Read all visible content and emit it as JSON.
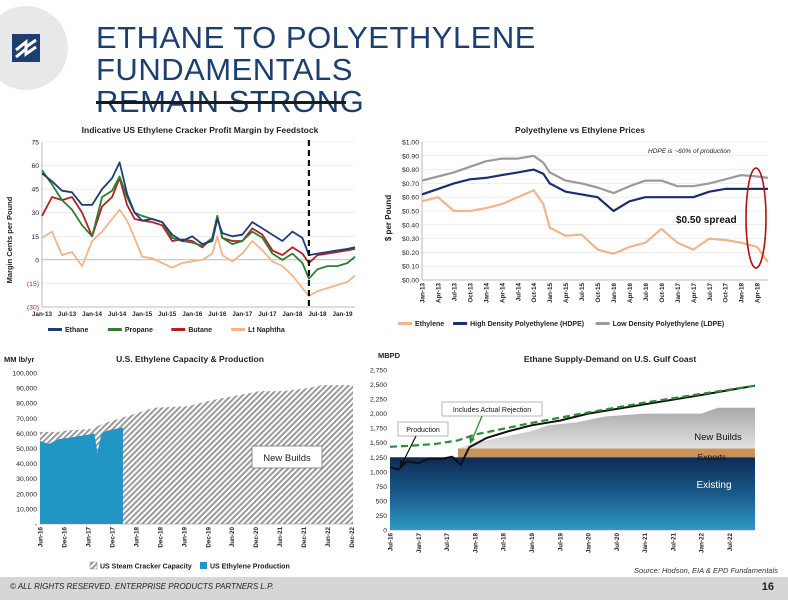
{
  "slide": {
    "title_line1": "ETHANE  TO POLYETHYLENE FUNDAMENTALS",
    "title_line2": "REMAIN STRONG",
    "footer_text": "© ALL RIGHTS RESERVED. ENTERPRISE PRODUCTS PARTNERS L.P.",
    "page_number": "16",
    "source": "Source: Hodson, EIA & EPD Fundamentals"
  },
  "colors": {
    "title": "#1c3f6e",
    "ethane": "#1f3c7a",
    "propane": "#2e7d32",
    "butane": "#b22222",
    "naphtha": "#f2b48a",
    "hdpe": "#1a2f6b",
    "ldpe": "#9a9a9a",
    "ethylene": "#f2b48a",
    "capacity": "#9a9a9a",
    "production": "#2196c4",
    "existing": "#163a66",
    "exports": "#c8935f",
    "new_builds": "#bdbdbd",
    "demand": "#2e8b3a",
    "spread_ellipse": "#b01010"
  },
  "chart_data": [
    {
      "id": "margin",
      "type": "line",
      "title": "Indicative US Ethylene Cracker Profit Margin by Feedstock",
      "ylabel": "Margin Cents per Pound",
      "ylim": [
        -30,
        75
      ],
      "yticks": [
        -30,
        -15,
        0,
        15,
        30,
        45,
        60,
        75
      ],
      "ytick_labels": [
        "(30)",
        "(15)",
        "0",
        "15",
        "30",
        "45",
        "60",
        "75"
      ],
      "xlim": [
        2013.0,
        2019.25
      ],
      "x_tick_labels": [
        "Jan-13",
        "Jul-13",
        "Jan-14",
        "Jul-14",
        "Jan-15",
        "Jul-15",
        "Jan-16",
        "Jul-16",
        "Jan-17",
        "Jul-17",
        "Jan-18",
        "Jul-18",
        "Jan-19"
      ],
      "x_ticks": [
        2013.0,
        2013.5,
        2014.0,
        2014.5,
        2015.0,
        2015.5,
        2016.0,
        2016.5,
        2017.0,
        2017.5,
        2018.0,
        2018.5,
        2019.0
      ],
      "vline_x": 2018.33,
      "x": [
        2013.0,
        2013.2,
        2013.4,
        2013.6,
        2013.8,
        2014.0,
        2014.2,
        2014.4,
        2014.55,
        2014.7,
        2014.85,
        2015.0,
        2015.2,
        2015.4,
        2015.6,
        2015.8,
        2016.0,
        2016.2,
        2016.4,
        2016.5,
        2016.6,
        2016.8,
        2017.0,
        2017.2,
        2017.4,
        2017.6,
        2017.8,
        2018.0,
        2018.2,
        2018.33,
        2018.5,
        2018.7,
        2018.9,
        2019.1,
        2019.25
      ],
      "series": [
        {
          "name": "Ethane",
          "color_key": "ethane",
          "values": [
            55,
            50,
            44,
            43,
            35,
            35,
            45,
            52,
            62,
            42,
            30,
            25,
            26,
            24,
            16,
            12,
            15,
            10,
            12,
            26,
            17,
            15,
            16,
            24,
            20,
            16,
            12,
            18,
            14,
            3,
            4,
            5,
            6,
            7,
            8
          ]
        },
        {
          "name": "Propane",
          "color_key": "propane",
          "values": [
            57,
            48,
            38,
            32,
            22,
            15,
            40,
            44,
            53,
            40,
            30,
            28,
            26,
            24,
            14,
            12,
            11,
            9,
            14,
            28,
            14,
            10,
            12,
            18,
            14,
            4,
            0,
            4,
            -2,
            -12,
            -6,
            -4,
            -4,
            -2,
            2
          ]
        },
        {
          "name": "Butane",
          "color_key": "butane",
          "values": [
            28,
            40,
            38,
            40,
            30,
            15,
            34,
            40,
            52,
            35,
            26,
            25,
            24,
            22,
            12,
            13,
            12,
            8,
            14,
            28,
            14,
            12,
            12,
            20,
            16,
            6,
            3,
            8,
            4,
            -2,
            3,
            4,
            5,
            6,
            7
          ]
        },
        {
          "name": "Lt Naphtha",
          "color_key": "naphtha",
          "values": [
            14,
            18,
            3,
            5,
            -4,
            12,
            18,
            26,
            32,
            25,
            14,
            2,
            1,
            -2,
            -5,
            -2,
            -1,
            0,
            4,
            15,
            3,
            -1,
            4,
            12,
            6,
            -1,
            -4,
            -10,
            -18,
            -23,
            -20,
            -18,
            -16,
            -14,
            -10
          ]
        }
      ]
    },
    {
      "id": "pe",
      "type": "line",
      "title": "Polyethylene vs Ethylene Prices",
      "ylabel": "$ per Pound",
      "ylim": [
        0,
        1.0
      ],
      "yticks": [
        0,
        0.1,
        0.2,
        0.3,
        0.4,
        0.5,
        0.6,
        0.7,
        0.8,
        0.9,
        1.0
      ],
      "ytick_labels": [
        "$0.00",
        "$0.10",
        "$0.20",
        "$0.30",
        "$0.40",
        "$0.50",
        "$0.60",
        "$0.70",
        "$0.80",
        "$0.90",
        "$1.00"
      ],
      "xlim": [
        2013.0,
        2018.42
      ],
      "x_tick_labels": [
        "Jan-13",
        "Apr-13",
        "Jul-13",
        "Oct-13",
        "Jan-14",
        "Apr-14",
        "Jul-14",
        "Oct-14",
        "Jan-15",
        "Apr-15",
        "Jul-15",
        "Oct-15",
        "Jan-16",
        "Apr-16",
        "Jul-16",
        "Oct-16",
        "Jan-17",
        "Apr-17",
        "Jul-17",
        "Oct-17",
        "Jan-18",
        "Apr-18"
      ],
      "x_ticks": [
        2013.0,
        2013.25,
        2013.5,
        2013.75,
        2014.0,
        2014.25,
        2014.5,
        2014.75,
        2015.0,
        2015.25,
        2015.5,
        2015.75,
        2016.0,
        2016.25,
        2016.5,
        2016.75,
        2017.0,
        2017.25,
        2017.5,
        2017.75,
        2018.0,
        2018.25
      ],
      "annotation": "HDPE is ~60% of production",
      "spread_label": "$0.50 spread",
      "x": [
        2013.0,
        2013.25,
        2013.5,
        2013.75,
        2014.0,
        2014.25,
        2014.5,
        2014.75,
        2014.9,
        2015.0,
        2015.25,
        2015.5,
        2015.75,
        2016.0,
        2016.25,
        2016.5,
        2016.75,
        2017.0,
        2017.25,
        2017.5,
        2017.75,
        2018.0,
        2018.25,
        2018.42
      ],
      "series": [
        {
          "name": "Ethylene",
          "color_key": "ethylene",
          "values": [
            0.57,
            0.6,
            0.5,
            0.5,
            0.52,
            0.55,
            0.6,
            0.65,
            0.55,
            0.38,
            0.32,
            0.33,
            0.22,
            0.19,
            0.24,
            0.27,
            0.37,
            0.27,
            0.22,
            0.3,
            0.29,
            0.27,
            0.24,
            0.13
          ]
        },
        {
          "name": "High Density Polyethylene (HDPE)",
          "color_key": "hdpe",
          "values": [
            0.62,
            0.66,
            0.7,
            0.73,
            0.74,
            0.76,
            0.78,
            0.8,
            0.77,
            0.7,
            0.64,
            0.62,
            0.6,
            0.5,
            0.57,
            0.6,
            0.6,
            0.6,
            0.6,
            0.64,
            0.66,
            0.66,
            0.66,
            0.66
          ]
        },
        {
          "name": "Low Density Polyethylene (LDPE)",
          "color_key": "ldpe",
          "values": [
            0.72,
            0.75,
            0.78,
            0.82,
            0.86,
            0.88,
            0.88,
            0.9,
            0.85,
            0.78,
            0.72,
            0.7,
            0.67,
            0.63,
            0.68,
            0.72,
            0.72,
            0.68,
            0.68,
            0.7,
            0.73,
            0.76,
            0.75,
            0.74
          ]
        }
      ]
    },
    {
      "id": "capacity",
      "type": "area",
      "title": "U.S. Ethylene Capacity & Production",
      "ylabel": "MM lb/yr",
      "ylim": [
        0,
        100000
      ],
      "yticks": [
        0,
        10000,
        20000,
        30000,
        40000,
        50000,
        60000,
        70000,
        80000,
        90000,
        100000
      ],
      "ytick_labels": [
        "-",
        "10,000",
        "20,000",
        "30,000",
        "40,000",
        "50,000",
        "60,000",
        "70,000",
        "80,000",
        "90,000",
        "100,000"
      ],
      "xlim": [
        2016.42,
        2022.95
      ],
      "x_tick_labels": [
        "Jun-16",
        "Dec-16",
        "Jun-17",
        "Dec-17",
        "Jun-18",
        "Dec-18",
        "Jun-19",
        "Dec-19",
        "Jun-20",
        "Dec-20",
        "Jun-21",
        "Dec-21",
        "Jun-22",
        "Dec-22"
      ],
      "x_ticks": [
        2016.42,
        2016.92,
        2017.42,
        2017.92,
        2018.42,
        2018.92,
        2019.42,
        2019.92,
        2020.42,
        2020.92,
        2021.42,
        2021.92,
        2022.42,
        2022.92
      ],
      "new_builds_label": "New Builds",
      "new_builds_start": 2018.2,
      "capacity_x": [
        2016.42,
        2016.8,
        2017.0,
        2017.5,
        2017.7,
        2018.0,
        2018.2,
        2018.5,
        2018.8,
        2019.5,
        2020.0,
        2020.5,
        2021.0,
        2021.5,
        2022.0,
        2022.3,
        2022.95
      ],
      "capacity_values": [
        61000,
        61000,
        62000,
        63000,
        66000,
        69000,
        71000,
        74000,
        77000,
        78000,
        82000,
        85000,
        88000,
        88000,
        90000,
        92000,
        92000
      ],
      "production_x": [
        2016.42,
        2016.6,
        2016.8,
        2017.0,
        2017.2,
        2017.4,
        2017.55,
        2017.62,
        2017.7,
        2017.85,
        2018.0,
        2018.15
      ],
      "production_values": [
        55000,
        53000,
        56000,
        57000,
        58000,
        59000,
        60000,
        47000,
        60000,
        62000,
        63000,
        64000
      ],
      "series_names": [
        "US Steam Cracker Capacity",
        "US Ethylene Production"
      ]
    },
    {
      "id": "ethane",
      "type": "area",
      "title": "Ethane Supply-Demand on U.S. Gulf Coast",
      "ylabel": "MBPD",
      "ylim": [
        0,
        2750
      ],
      "yticks": [
        0,
        250,
        500,
        750,
        1000,
        1250,
        1500,
        1750,
        2000,
        2250,
        2500,
        2750
      ],
      "ytick_labels": [
        "0",
        "250",
        "500",
        "750",
        "1,000",
        "1,250",
        "1,500",
        "1,750",
        "2,000",
        "2,250",
        "2,500",
        "2,750"
      ],
      "xlim": [
        2016.5,
        2022.95
      ],
      "x_tick_labels": [
        "Jul-16",
        "Jan-17",
        "Jul-17",
        "Jan-18",
        "Jul-18",
        "Jan-19",
        "Jul-19",
        "Jan-20",
        "Jul-20",
        "Jan-21",
        "Jul-21",
        "Jan-22",
        "Jul-22"
      ],
      "x_ticks": [
        2016.5,
        2017.0,
        2017.5,
        2018.0,
        2018.5,
        2019.0,
        2019.5,
        2020.0,
        2020.5,
        2021.0,
        2021.5,
        2022.0,
        2022.5
      ],
      "labels": {
        "new_builds": "New Builds",
        "exports": "Exports",
        "existing": "Existing",
        "production": "Production",
        "rejection": "Includes Actual Rejection"
      },
      "existing_level": 1250,
      "exports_top": 1400,
      "exports_start": 2017.7,
      "newbuild_x": [
        2017.7,
        2018.0,
        2018.5,
        2019.0,
        2019.3,
        2019.8,
        2020.3,
        2021.0,
        2022.0,
        2022.3,
        2022.95
      ],
      "newbuild_values": [
        1400,
        1500,
        1600,
        1700,
        1800,
        1850,
        1950,
        2000,
        2000,
        2100,
        2100
      ],
      "demand_x": [
        2016.5,
        2016.9,
        2017.3,
        2017.7,
        2018.0,
        2018.5,
        2019.0,
        2020.0,
        2021.0,
        2022.0,
        2022.95
      ],
      "demand_values": [
        1430,
        1450,
        1480,
        1540,
        1640,
        1740,
        1840,
        2020,
        2190,
        2340,
        2480
      ],
      "production_x": [
        2016.5,
        2016.65,
        2016.8,
        2017.0,
        2017.2,
        2017.4,
        2017.6,
        2017.75,
        2017.9,
        2018.2,
        2018.6,
        2019.0,
        2019.5,
        2020.0,
        2021.0,
        2022.0,
        2022.95
      ],
      "production_values": [
        1080,
        1040,
        1180,
        1150,
        1230,
        1220,
        1260,
        1120,
        1420,
        1580,
        1700,
        1800,
        1880,
        2000,
        2160,
        2320,
        2480
      ]
    }
  ]
}
